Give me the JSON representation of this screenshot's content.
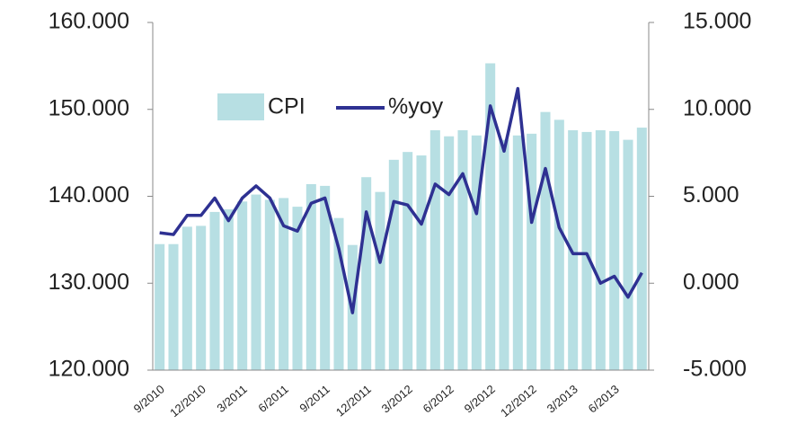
{
  "chart_data": {
    "type": "bar",
    "categories": [
      "9/2010",
      null,
      null,
      "12/2010",
      null,
      null,
      "3/2011",
      null,
      null,
      "6/2011",
      null,
      null,
      "9/2011",
      null,
      null,
      "12/2011",
      null,
      null,
      "3/2012",
      null,
      null,
      "6/2012",
      null,
      null,
      "9/2012",
      null,
      null,
      "12/2012",
      null,
      null,
      "3/2013",
      null,
      null,
      "6/2013",
      null,
      null
    ],
    "series": [
      {
        "name": "CPI",
        "color": "#b7dfe3",
        "values": [
          134.5,
          134.5,
          136.5,
          136.6,
          138.2,
          138.5,
          139.4,
          140.2,
          139.6,
          139.8,
          138.8,
          141.4,
          141.2,
          137.5,
          134.4,
          142.2,
          140.5,
          144.2,
          145.1,
          144.7,
          147.6,
          146.9,
          147.6,
          147.0,
          155.3,
          146.5,
          147.0,
          147.2,
          149.7,
          148.8,
          147.6,
          147.4,
          147.6,
          147.5,
          146.5,
          147.9
        ]
      },
      {
        "name": "%yoy",
        "color": "#2e3192",
        "type": "line",
        "axis": "y2",
        "values": [
          2.9,
          2.8,
          3.9,
          3.9,
          4.9,
          3.6,
          4.9,
          5.6,
          4.9,
          3.3,
          3.0,
          4.6,
          4.9,
          2.0,
          -1.7,
          4.1,
          1.2,
          4.7,
          4.5,
          3.4,
          5.7,
          5.1,
          6.3,
          4.0,
          10.2,
          7.6,
          11.2,
          3.5,
          6.6,
          3.2,
          1.7,
          1.7,
          0.0,
          0.4,
          -0.8,
          0.6
        ]
      }
    ],
    "ylim": [
      120,
      160
    ],
    "yticks": [
      {
        "value": 120,
        "label": "120.000"
      },
      {
        "value": 130,
        "label": "130.000"
      },
      {
        "value": 140,
        "label": "140.000"
      },
      {
        "value": 150,
        "label": "150.000"
      },
      {
        "value": 160,
        "label": "160.000"
      }
    ],
    "y2lim": [
      -5,
      15
    ],
    "y2ticks": [
      {
        "value": -5,
        "label": "-5.000"
      },
      {
        "value": 0,
        "label": "0.000"
      },
      {
        "value": 5,
        "label": "5.000"
      },
      {
        "value": 10,
        "label": "10.000"
      },
      {
        "value": 15,
        "label": "15.000"
      }
    ],
    "grid": false
  }
}
